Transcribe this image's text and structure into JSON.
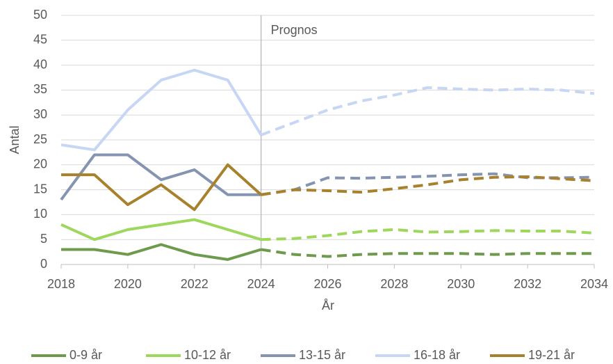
{
  "chart_data": {
    "type": "line",
    "x_label": "År",
    "y_label": "Antal",
    "x": [
      2018,
      2019,
      2020,
      2021,
      2022,
      2023,
      2024,
      2025,
      2026,
      2027,
      2028,
      2029,
      2030,
      2031,
      2032,
      2033,
      2034
    ],
    "xlim": [
      2018,
      2034
    ],
    "xticks": [
      2018,
      2020,
      2022,
      2024,
      2026,
      2028,
      2030,
      2032,
      2034
    ],
    "ylim": [
      0,
      50
    ],
    "yticks": [
      0,
      5,
      10,
      15,
      20,
      25,
      30,
      35,
      40,
      45,
      50
    ],
    "grid": true,
    "legend": "bottom",
    "forecast": {
      "x": 2024,
      "label": "Prognos"
    },
    "series": [
      {
        "name": "0-9 år",
        "color": "#6e9a4c",
        "values": [
          3,
          3,
          2,
          4,
          2,
          1,
          3,
          2,
          1.6,
          2,
          2.2,
          2.2,
          2.2,
          2,
          2.2,
          2.2,
          2.2
        ]
      },
      {
        "name": "10-12 år",
        "color": "#9dd75c",
        "values": [
          8,
          5,
          7,
          8,
          9,
          7,
          5,
          5.2,
          5.8,
          6.6,
          7,
          6.5,
          6.6,
          6.8,
          6.7,
          6.7,
          6.3
        ]
      },
      {
        "name": "13-15 år",
        "color": "#8594b0",
        "values": [
          13,
          22,
          22,
          17,
          19,
          14,
          14,
          15,
          17.4,
          17.3,
          17.5,
          17.7,
          18,
          18.2,
          17.4,
          17.4,
          17.5
        ]
      },
      {
        "name": "16-18 år",
        "color": "#c6d6f4",
        "values": [
          24,
          23,
          31,
          37,
          39,
          37,
          26,
          28.5,
          31,
          32.8,
          34,
          35.5,
          35.2,
          35,
          35.2,
          35,
          34.3
        ]
      },
      {
        "name": "19-21 år",
        "color": "#a8812c",
        "values": [
          18,
          18,
          12,
          16,
          11,
          20,
          14,
          15,
          14.8,
          14.5,
          15.2,
          16,
          17,
          17.5,
          17.6,
          17.2,
          16.8
        ]
      }
    ]
  }
}
